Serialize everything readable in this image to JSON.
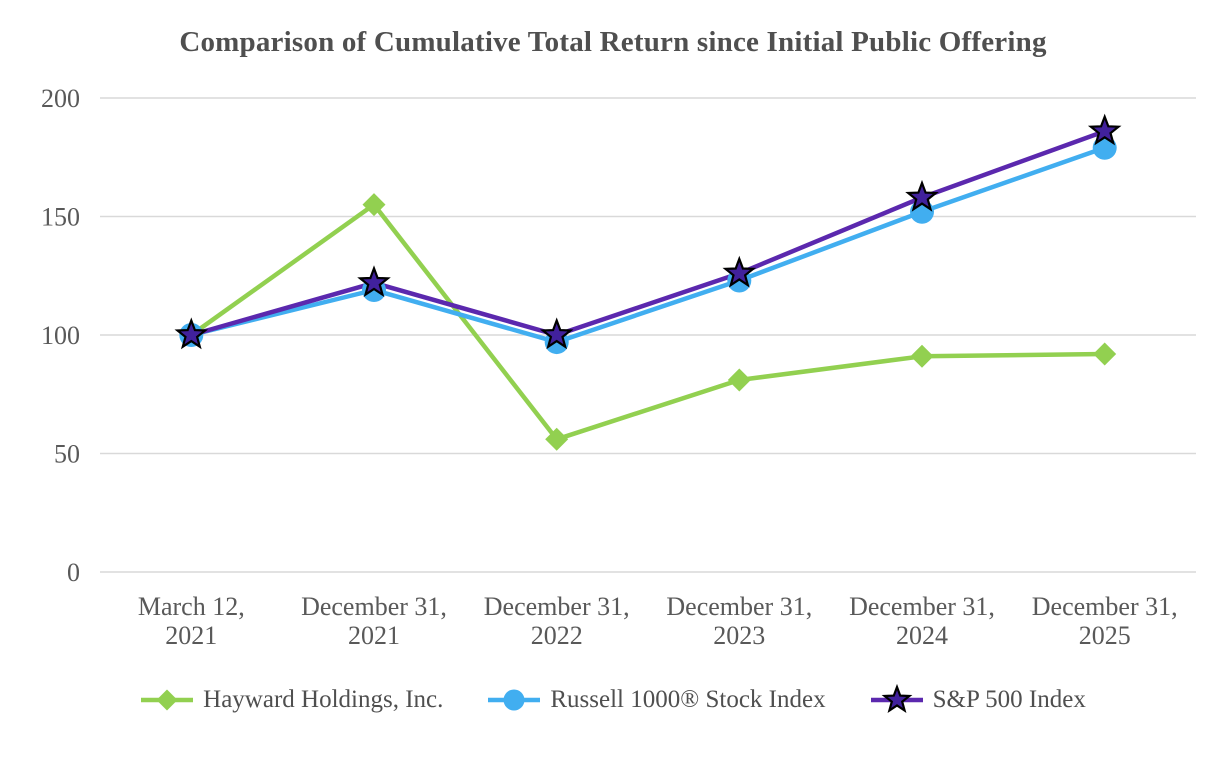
{
  "title": "Comparison of Cumulative Total Return since Initial Public Offering",
  "chart_data": {
    "type": "line",
    "categories": [
      "March 12, 2021",
      "December 31, 2021",
      "December 31, 2022",
      "December 31, 2023",
      "December 31, 2024",
      "December 31, 2025"
    ],
    "series": [
      {
        "name": "Hayward Holdings, Inc.",
        "marker": "diamond",
        "color": "#92D050",
        "values": [
          100,
          155,
          56,
          81,
          91,
          92
        ]
      },
      {
        "name": "Russell 1000® Stock Index",
        "marker": "circle",
        "color": "#41AEF0",
        "values": [
          100,
          119,
          97,
          123,
          152,
          179
        ]
      },
      {
        "name": "S&P 500 Index",
        "marker": "star",
        "color": "#5B28AE",
        "marker_fill": "#41219C",
        "marker_stroke": "#000000",
        "values": [
          100,
          122,
          100,
          126,
          158,
          186
        ]
      }
    ],
    "ylim": [
      0,
      200
    ],
    "yticks": [
      0,
      50,
      100,
      150,
      200
    ],
    "xlabel": "",
    "ylabel": "",
    "grid": true,
    "legend_position": "bottom",
    "gridline_color": "#D9D9D9",
    "text_color": "#595959"
  }
}
